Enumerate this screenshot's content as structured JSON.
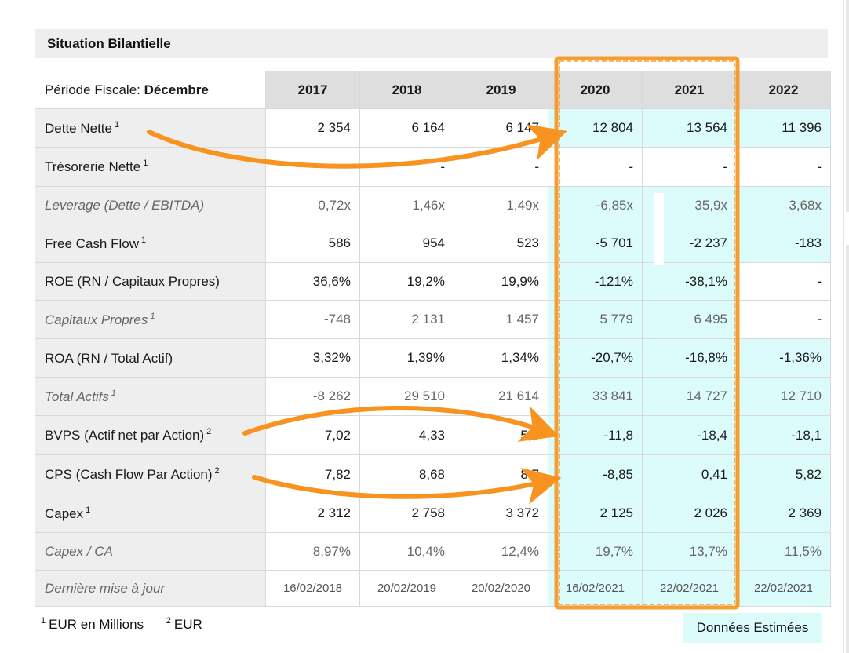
{
  "section_title": "Situation Bilantielle",
  "period_label": "Période Fiscale: ",
  "period_value": "Décembre",
  "years": [
    "2017",
    "2018",
    "2019",
    "2020",
    "2021",
    "2022"
  ],
  "rows": [
    {
      "label": "Dette Nette",
      "sup": "1",
      "values": [
        "2 354",
        "6 164",
        "6 147",
        "12 804",
        "13 564",
        "11 396"
      ]
    },
    {
      "label": "Trésorerie Nette",
      "sup": "1",
      "values": [
        "-",
        "-",
        "-",
        "-",
        "-",
        "-"
      ]
    },
    {
      "label": "Leverage (Dette / EBITDA)",
      "sup": "",
      "values": [
        "0,72x",
        "1,46x",
        "1,49x",
        "-6,85x",
        "35,9x",
        "3,68x"
      ]
    },
    {
      "label": "Free Cash Flow",
      "sup": "1",
      "values": [
        "586",
        "954",
        "523",
        "-5 701",
        "-2 237",
        "-183"
      ]
    },
    {
      "label": "ROE (RN / Capitaux Propres)",
      "sup": "",
      "values": [
        "36,6%",
        "19,2%",
        "19,9%",
        "-121%",
        "-38,1%",
        "-"
      ]
    },
    {
      "label": "Capitaux Propres",
      "sup": "1",
      "values": [
        "-748",
        "2 131",
        "1 457",
        "5 779",
        "6 495",
        "-"
      ]
    },
    {
      "label": "ROA (RN / Total Actif)",
      "sup": "",
      "values": [
        "3,32%",
        "1,39%",
        "1,34%",
        "-20,7%",
        "-16,8%",
        "-1,36%"
      ]
    },
    {
      "label": "Total Actifs",
      "sup": "1",
      "values": [
        "-8 262",
        "29 510",
        "21 614",
        "33 841",
        "14 727",
        "12 710"
      ]
    },
    {
      "label": "BVPS (Actif net par Action)",
      "sup": "2",
      "values": [
        "7,02",
        "4,33",
        "5,3",
        "-11,8",
        "-18,4",
        "-18,1"
      ]
    },
    {
      "label": "CPS (Cash Flow Par Action)",
      "sup": "2",
      "values": [
        "7,82",
        "8,68",
        "8,7",
        "-8,85",
        "0,41",
        "5,82"
      ]
    },
    {
      "label": "Capex",
      "sup": "1",
      "values": [
        "2 312",
        "2 758",
        "3 372",
        "2 125",
        "2 026",
        "2 369"
      ]
    },
    {
      "label": "Capex / CA",
      "sup": "",
      "values": [
        "8,97%",
        "10,4%",
        "12,4%",
        "19,7%",
        "13,7%",
        "11,5%"
      ]
    },
    {
      "label": "Dernière mise à jour",
      "sup": "",
      "values": [
        "16/02/2018",
        "20/02/2019",
        "20/02/2020",
        "16/02/2021",
        "22/02/2021",
        "22/02/2021"
      ]
    }
  ],
  "footnotes": [
    {
      "mark": "1",
      "text": "EUR en Millions"
    },
    {
      "mark": "2",
      "text": "EUR"
    }
  ],
  "legend_label": "Données Estimées",
  "colors": {
    "estimated_bg": "#dcfbfb",
    "annotation": "#f7931e",
    "label_bg": "#eeeeee",
    "header_bg": "#dedede"
  }
}
